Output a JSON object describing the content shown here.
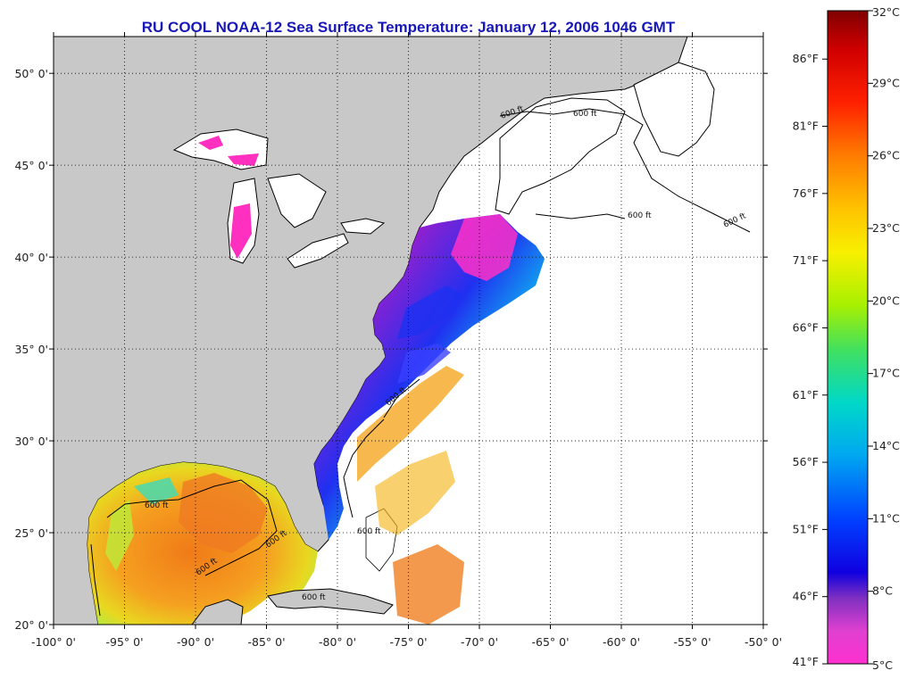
{
  "title": "RU COOL  NOAA-12  Sea Surface Temperature:  January 12, 2006 1046 GMT",
  "map": {
    "lon_range": [
      -100,
      -50
    ],
    "lat_range": [
      20,
      52
    ],
    "lon_ticks": [
      "-100° 0'",
      "-95° 0'",
      "-90° 0'",
      "-85° 0'",
      "-80° 0'",
      "-75° 0'",
      "-70° 0'",
      "-65° 0'",
      "-60° 0'",
      "-55° 0'",
      "-50° 0'"
    ],
    "lat_ticks": [
      "20° 0'",
      "25° 0'",
      "30° 0'",
      "35° 0'",
      "40° 0'",
      "45° 0'",
      "50° 0'"
    ],
    "contour_label": "600 ft",
    "colors": {
      "land": "#c8c8c8",
      "no_data": "#ffffff",
      "coast": "#000000"
    }
  },
  "colorbar": {
    "celsius": [
      "32°C",
      "29°C",
      "26°C",
      "23°C",
      "20°C",
      "17°C",
      "14°C",
      "11°C",
      "8°C",
      "5°C"
    ],
    "fahrenheit": [
      "86°F",
      "81°F",
      "76°F",
      "71°F",
      "66°F",
      "61°F",
      "56°F",
      "51°F",
      "46°F",
      "41°F"
    ],
    "range_c": [
      5,
      32
    ],
    "range_f": [
      41,
      89.6
    ]
  }
}
